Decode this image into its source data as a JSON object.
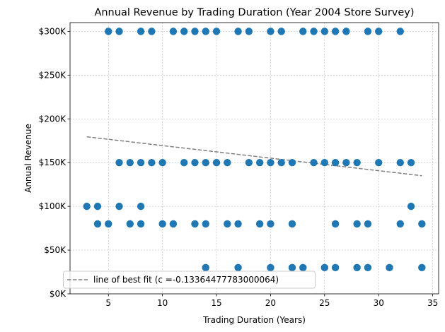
{
  "chart_data": {
    "type": "scatter",
    "title": "Annual Revenue by Trading Duration (Year 2004 Store Survey)",
    "xlabel": "Trading Duration (Years)",
    "ylabel": "Annual Revenue",
    "xlim": [
      1.45,
      35.55
    ],
    "ylim": [
      0,
      310000
    ],
    "x_ticks": [
      5,
      10,
      15,
      20,
      25,
      30,
      35
    ],
    "x_tick_labels": [
      "5",
      "10",
      "15",
      "20",
      "25",
      "30",
      "35"
    ],
    "y_ticks": [
      0,
      50000,
      100000,
      150000,
      200000,
      250000,
      300000
    ],
    "y_tick_labels": [
      "$0K",
      "$50K",
      "$100K",
      "$150K",
      "$200K",
      "$250K",
      "$300K"
    ],
    "grid": true,
    "legend_position": "lower-left",
    "colors": {
      "points": "#1f77b4",
      "fit_line": "#808080",
      "grid": "#b0b0b0"
    },
    "series": [
      {
        "x": [
          5,
          6,
          8,
          9,
          11,
          12,
          13,
          14,
          15,
          17,
          18,
          20,
          21,
          23,
          24,
          25,
          26,
          27,
          29,
          30,
          32,
          6,
          7,
          8,
          9,
          10,
          12,
          13,
          14,
          15,
          16,
          18,
          19,
          20,
          21,
          22,
          24,
          25,
          26,
          27,
          28,
          30,
          32,
          33,
          3,
          4,
          6,
          8,
          33,
          4,
          5,
          7,
          8,
          10,
          11,
          13,
          14,
          16,
          17,
          19,
          20,
          22,
          26,
          28,
          29,
          32,
          34,
          14,
          17,
          20,
          22,
          23,
          25,
          26,
          28,
          29,
          31,
          34
        ],
        "y": [
          300000,
          300000,
          300000,
          300000,
          300000,
          300000,
          300000,
          300000,
          300000,
          300000,
          300000,
          300000,
          300000,
          300000,
          300000,
          300000,
          300000,
          300000,
          300000,
          300000,
          300000,
          150000,
          150000,
          150000,
          150000,
          150000,
          150000,
          150000,
          150000,
          150000,
          150000,
          150000,
          150000,
          150000,
          150000,
          150000,
          150000,
          150000,
          150000,
          150000,
          150000,
          150000,
          150000,
          150000,
          100000,
          100000,
          100000,
          100000,
          100000,
          80000,
          80000,
          80000,
          80000,
          80000,
          80000,
          80000,
          80000,
          80000,
          80000,
          80000,
          80000,
          80000,
          80000,
          80000,
          80000,
          80000,
          80000,
          30000,
          30000,
          30000,
          30000,
          30000,
          30000,
          30000,
          30000,
          30000,
          30000,
          30000
        ]
      },
      {
        "name": "line of best fit (c =-0.13364477783000064)",
        "style": "dashed",
        "x": [
          3,
          34
        ],
        "y": [
          179500,
          135000
        ]
      }
    ]
  }
}
